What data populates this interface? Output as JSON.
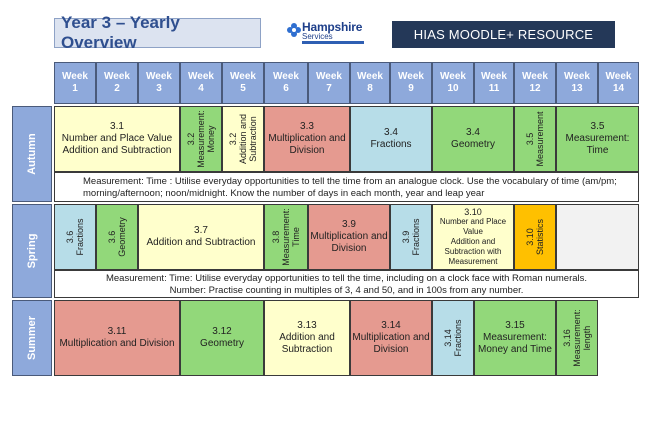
{
  "header": {
    "title": "Year 3 – Yearly Overview",
    "logo_name": "Hampshire",
    "logo_sub": "Services",
    "resource_label": "HIAS MOODLE+ RESOURCE"
  },
  "weeks": [
    {
      "l1": "Week",
      "l2": "1"
    },
    {
      "l1": "Week",
      "l2": "2"
    },
    {
      "l1": "Week",
      "l2": "3"
    },
    {
      "l1": "Week",
      "l2": "4"
    },
    {
      "l1": "Week",
      "l2": "5"
    },
    {
      "l1": "Week",
      "l2": "6"
    },
    {
      "l1": "Week",
      "l2": "7"
    },
    {
      "l1": "Week",
      "l2": "8"
    },
    {
      "l1": "Week",
      "l2": "9"
    },
    {
      "l1": "Week",
      "l2": "10"
    },
    {
      "l1": "Week",
      "l2": "11"
    },
    {
      "l1": "Week",
      "l2": "12"
    },
    {
      "l1": "Week",
      "l2": "13"
    },
    {
      "l1": "Week",
      "l2": "14"
    }
  ],
  "seasons": {
    "autumn": "Autumn",
    "spring": "Spring",
    "summer": "Summer"
  },
  "autumn": {
    "c1": {
      "num": "3.1",
      "l1": "Number and Place Value",
      "l2": "Addition and Subtraction"
    },
    "c2": {
      "num": "3.2",
      "l1": "Measurement:",
      "l2": "Money"
    },
    "c3": {
      "num": "3.2",
      "l1": "Addition and",
      "l2": "Subtraction"
    },
    "c4": {
      "num": "3.3",
      "l1": "Multiplication and",
      "l2": "Division"
    },
    "c5": {
      "num": "3.4",
      "l1": "Fractions"
    },
    "c6": {
      "num": "3.4",
      "l1": "Geometry"
    },
    "c7": {
      "num": "3.5",
      "l1": "Measurement"
    },
    "c8": {
      "num": "3.5",
      "l1": "Measurement:",
      "l2": "Time"
    },
    "note_l1": "Measurement: Time : Utilise everyday opportunities to tell the time from an analogue clock. Use the vocabulary of time (am/pm;",
    "note_l2": "morning/afternoon; noon/midnight. Know the number of days in each month, year and leap year"
  },
  "spring": {
    "c1": {
      "num": "3.6",
      "l1": "Fractions"
    },
    "c2": {
      "num": "3.6",
      "l1": "Geometry"
    },
    "c3": {
      "num": "3.7",
      "l1": "Addition and Subtraction"
    },
    "c4": {
      "num": "3.8",
      "l1": "Measurement:",
      "l2": "Time"
    },
    "c5": {
      "num": "3.9",
      "l1": "Multiplication and",
      "l2": "Division"
    },
    "c6": {
      "num": "3.9",
      "l1": "Fractions"
    },
    "c7": {
      "num": "3.10",
      "l1": "Number and Place",
      "l2": "Value",
      "l3": "Addition and",
      "l4": "Subtraction with",
      "l5": "Measurement"
    },
    "c8": {
      "num": "3.10",
      "l1": "Statistics"
    },
    "note_l1": "Measurement: Time: Utilise everyday opportunities to tell the time, including on a clock face with Roman numerals.",
    "note_l2": "Number: Practise counting in multiples of 3, 4 and 50, and in 100s from any number."
  },
  "summer": {
    "c1": {
      "num": "3.11",
      "l1": "Multiplication and Division"
    },
    "c2": {
      "num": "3.12",
      "l1": "Geometry"
    },
    "c3": {
      "num": "3.13",
      "l1": "Addition and",
      "l2": "Subtraction"
    },
    "c4": {
      "num": "3.14",
      "l1": "Multiplication and",
      "l2": "Division"
    },
    "c5": {
      "num": "3.14",
      "l1": "Fractions"
    },
    "c6": {
      "num": "3.15",
      "l1": "Measurement:",
      "l2": "Money and Time"
    },
    "c7": {
      "num": "3.16",
      "l1": "Measurement:",
      "l2": "length"
    }
  },
  "colors": {
    "header_blue": "#8ea9db",
    "yellow": "#ffffcc",
    "green": "#92d87a",
    "red": "#e59a90",
    "blue": "#b7dde8",
    "orange": "#ffc000"
  }
}
